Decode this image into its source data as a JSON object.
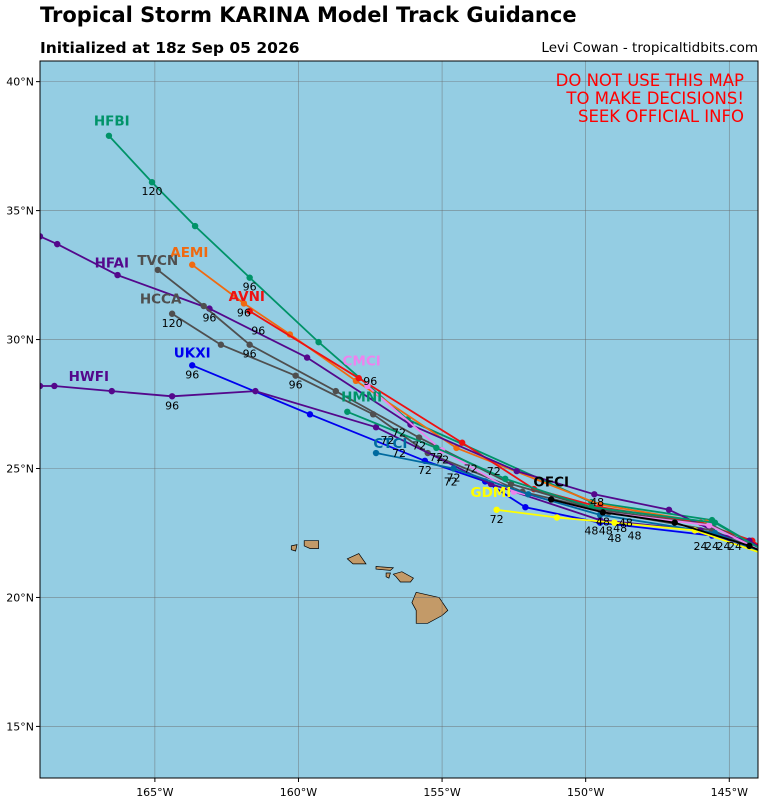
{
  "header": {
    "title": "Tropical Storm KARINA Model Track Guidance",
    "subtitle": "Initialized at 18z Sep 05 2026",
    "credit": "Levi Cowan - tropicaltidbits.com"
  },
  "warning": {
    "line1": "DO NOT USE THIS MAP",
    "line2": "TO MAKE DECISIONS!",
    "line3": "SEEK OFFICIAL INFO",
    "color": "#ff0000"
  },
  "map": {
    "lon_range": [
      -169,
      -144
    ],
    "lat_range": [
      13,
      40.8
    ],
    "ocean_color": "#94cde3",
    "land_color": "#c39a68",
    "grid_lons": [
      -165,
      -160,
      -155,
      -150,
      -145
    ],
    "grid_lats": [
      15,
      20,
      25,
      30,
      35,
      40
    ],
    "lon_tick_labels": [
      "165°W",
      "160°W",
      "155°W",
      "150°W",
      "145°W"
    ],
    "lat_tick_labels": [
      "15°N",
      "20°N",
      "25°N",
      "30°N",
      "35°N",
      "40°N"
    ]
  },
  "tracks": [
    {
      "name": "HFBI",
      "color": "#009368",
      "label": [
        -166.5,
        38.3
      ],
      "points": [
        [
          -143.3,
          21.5
        ],
        [
          -145.6,
          23.0
        ],
        [
          -149.8,
          23.7
        ],
        [
          -156.2,
          26.9
        ],
        [
          -159.3,
          29.9
        ],
        [
          -161.7,
          32.4
        ],
        [
          -163.6,
          34.4
        ],
        [
          -165.1,
          36.1
        ],
        [
          -166.6,
          37.9
        ]
      ],
      "hours": [
        {
          "h": "96",
          "at": [
            -161.7,
            32.4
          ]
        },
        {
          "h": "120",
          "at": [
            -165.1,
            36.1
          ]
        }
      ]
    },
    {
      "name": "AEMI",
      "color": "#f06a10",
      "label": [
        -163.8,
        33.2
      ],
      "points": [
        [
          -143.3,
          21.5
        ],
        [
          -145.8,
          22.9
        ],
        [
          -149.5,
          23.6
        ],
        [
          -154.5,
          25.8
        ],
        [
          -158.0,
          28.4
        ],
        [
          -160.3,
          30.2
        ],
        [
          -161.9,
          31.4
        ],
        [
          -163.7,
          32.9
        ]
      ],
      "hours": [
        {
          "h": "96",
          "at": [
            -161.9,
            31.4
          ]
        }
      ]
    },
    {
      "name": "AVNI",
      "color": "#ee1111",
      "label": [
        -161.8,
        31.5
      ],
      "points": [
        [
          -143.3,
          21.5
        ],
        [
          -144.2,
          22.2
        ],
        [
          -146.0,
          22.9
        ],
        [
          -149.5,
          23.5
        ],
        [
          -151.8,
          24.2
        ],
        [
          -154.3,
          26.0
        ],
        [
          -157.9,
          28.5
        ],
        [
          -161.7,
          31.1
        ]
      ],
      "hours": [
        {
          "h": "96",
          "at": [
            -161.4,
            30.7
          ]
        }
      ]
    },
    {
      "name": "HFAI",
      "color": "#54088c",
      "label": [
        -166.5,
        32.8
      ],
      "points": [
        [
          -143.3,
          21.5
        ],
        [
          -145.0,
          22.3
        ],
        [
          -147.1,
          23.4
        ],
        [
          -149.7,
          24.0
        ],
        [
          -152.4,
          24.9
        ],
        [
          -156.1,
          26.7
        ],
        [
          -159.7,
          29.3
        ],
        [
          -163.1,
          31.2
        ],
        [
          -166.3,
          32.5
        ],
        [
          -168.4,
          33.7
        ],
        [
          -169.0,
          34.0
        ]
      ],
      "hours": [
        {
          "h": "96",
          "at": [
            -163.1,
            31.2
          ]
        }
      ]
    },
    {
      "name": "TVCN",
      "color": "#4f4f4f",
      "label": [
        -164.9,
        32.9
      ],
      "points": [
        [
          -143.3,
          21.5
        ],
        [
          -145.6,
          22.8
        ],
        [
          -149.5,
          23.4
        ],
        [
          -152.6,
          24.4
        ],
        [
          -155.8,
          26.2
        ],
        [
          -158.7,
          28.0
        ],
        [
          -161.7,
          29.8
        ],
        [
          -163.3,
          31.3
        ],
        [
          -164.9,
          32.7
        ]
      ],
      "hours": [
        {
          "h": "96",
          "at": [
            -161.7,
            29.8
          ]
        }
      ]
    },
    {
      "name": "HCCA",
      "color": "#4f4f4f",
      "label": [
        -164.8,
        31.4
      ],
      "points": [
        [
          -143.3,
          21.5
        ],
        [
          -145.6,
          22.6
        ],
        [
          -149.2,
          23.3
        ],
        [
          -152.2,
          24.1
        ],
        [
          -155.5,
          25.6
        ],
        [
          -157.4,
          27.1
        ],
        [
          -160.1,
          28.6
        ],
        [
          -162.7,
          29.8
        ],
        [
          -164.4,
          31.0
        ]
      ],
      "hours": [
        {
          "h": "96",
          "at": [
            -160.1,
            28.6
          ]
        },
        {
          "h": "120",
          "at": [
            -164.4,
            31.0
          ]
        }
      ]
    },
    {
      "name": "UKXI",
      "color": "#0000ee",
      "label": [
        -163.7,
        29.3
      ],
      "points": [
        [
          -143.3,
          21.5
        ],
        [
          -145.6,
          22.4
        ],
        [
          -149.5,
          22.9
        ],
        [
          -152.1,
          23.5
        ],
        [
          -153.5,
          24.5
        ],
        [
          -155.6,
          25.3
        ],
        [
          -159.6,
          27.1
        ],
        [
          -163.7,
          29.0
        ]
      ],
      "hours": [
        {
          "h": "96",
          "at": [
            -163.7,
            29.0
          ]
        },
        {
          "h": "72",
          "at": [
            -155.6,
            25.3
          ]
        }
      ]
    },
    {
      "name": "HWFI",
      "color": "#54088c",
      "label": [
        -167.3,
        28.4
      ],
      "points": [
        [
          -143.3,
          21.5
        ],
        [
          -144.3,
          22.2
        ],
        [
          -146.0,
          22.6
        ],
        [
          -149.5,
          23.0
        ],
        [
          -153.3,
          24.4
        ],
        [
          -157.3,
          26.6
        ],
        [
          -161.5,
          28.0
        ],
        [
          -164.4,
          27.8
        ],
        [
          -166.5,
          28.0
        ],
        [
          -168.5,
          28.2
        ],
        [
          -169.0,
          28.2
        ]
      ],
      "hours": [
        {
          "h": "96",
          "at": [
            -164.4,
            27.8
          ]
        }
      ]
    },
    {
      "name": "CMCI",
      "color": "#ee82ee",
      "label": [
        -157.8,
        29.0
      ],
      "points": [
        [
          -143.3,
          21.5
        ],
        [
          -145.7,
          22.8
        ],
        [
          -149.4,
          23.3
        ],
        [
          -152.5,
          24.1
        ],
        [
          -155.0,
          25.7
        ],
        [
          -157.6,
          28.2
        ]
      ],
      "hours": [
        {
          "h": "72",
          "at": [
            -155.0,
            25.7
          ]
        }
      ]
    },
    {
      "name": "HMNI",
      "color": "#009368",
      "label": [
        -157.8,
        27.6
      ],
      "points": [
        [
          -143.3,
          21.5
        ],
        [
          -145.5,
          22.9
        ],
        [
          -149.8,
          23.5
        ],
        [
          -152.8,
          24.6
        ],
        [
          -155.2,
          25.8
        ],
        [
          -158.3,
          27.2
        ]
      ],
      "hours": [
        {
          "h": "72",
          "at": [
            -155.2,
            25.8
          ]
        }
      ]
    },
    {
      "name": "CTCI",
      "color": "#006a9f",
      "label": [
        -156.8,
        25.8
      ],
      "points": [
        [
          -143.3,
          21.5
        ],
        [
          -145.5,
          22.5
        ],
        [
          -149.5,
          23.2
        ],
        [
          -152.0,
          24.0
        ],
        [
          -154.6,
          25.0
        ],
        [
          -157.3,
          25.6
        ]
      ],
      "hours": [
        {
          "h": "72",
          "at": [
            -154.6,
            25.0
          ]
        }
      ]
    },
    {
      "name": "GDMI",
      "color": "#ffff00",
      "label": [
        -153.3,
        23.9
      ],
      "points": [
        [
          -143.3,
          21.5
        ],
        [
          -146.2,
          22.6
        ],
        [
          -149.0,
          22.9
        ],
        [
          -151.0,
          23.1
        ],
        [
          -153.1,
          23.4
        ]
      ],
      "hours": [
        {
          "h": "72",
          "at": [
            -153.1,
            23.4
          ]
        }
      ]
    },
    {
      "name": "OFCI",
      "color": "#000000",
      "label": [
        -151.2,
        24.3
      ],
      "points": [
        [
          -143.3,
          21.5
        ],
        [
          -144.3,
          22.0
        ],
        [
          -146.9,
          22.9
        ],
        [
          -149.4,
          23.3
        ],
        [
          -151.2,
          23.8
        ]
      ],
      "hours": [
        {
          "h": "48",
          "at": [
            -149.4,
            23.3
          ]
        }
      ]
    }
  ],
  "extra_hour_labels": [
    {
      "h": "24",
      "at": [
        -145.2,
        22.0
      ]
    },
    {
      "h": "24",
      "at": [
        -145.6,
        22.0
      ]
    },
    {
      "h": "24",
      "at": [
        -146.0,
        22.0
      ]
    },
    {
      "h": "24",
      "at": [
        -144.8,
        22.0
      ]
    },
    {
      "h": "48",
      "at": [
        -149.8,
        22.6
      ]
    },
    {
      "h": "48",
      "at": [
        -149.3,
        22.6
      ]
    },
    {
      "h": "48",
      "at": [
        -148.8,
        22.7
      ]
    },
    {
      "h": "48",
      "at": [
        -148.3,
        22.4
      ]
    },
    {
      "h": "48",
      "at": [
        -149.0,
        22.3
      ]
    },
    {
      "h": "48",
      "at": [
        -149.6,
        23.7
      ]
    },
    {
      "h": "48",
      "at": [
        -148.6,
        22.9
      ]
    },
    {
      "h": "72",
      "at": [
        -156.9,
        26.1
      ]
    },
    {
      "h": "72",
      "at": [
        -156.5,
        25.6
      ]
    },
    {
      "h": "72",
      "at": [
        -155.8,
        25.9
      ]
    },
    {
      "h": "72",
      "at": [
        -154.0,
        25.0
      ]
    },
    {
      "h": "72",
      "at": [
        -154.7,
        24.5
      ]
    },
    {
      "h": "72",
      "at": [
        -153.2,
        24.9
      ]
    },
    {
      "h": "72",
      "at": [
        -156.5,
        26.4
      ]
    },
    {
      "h": "96",
      "at": [
        -157.5,
        28.4
      ]
    }
  ],
  "islands": [
    [
      [
        -155.9,
        20.2
      ],
      [
        -155.1,
        20.0
      ],
      [
        -154.8,
        19.5
      ],
      [
        -155.0,
        19.3
      ],
      [
        -155.5,
        19.0
      ],
      [
        -155.9,
        19.0
      ],
      [
        -155.9,
        19.5
      ],
      [
        -156.05,
        19.8
      ]
    ],
    [
      [
        -156.7,
        20.9
      ],
      [
        -156.4,
        21.0
      ],
      [
        -156.0,
        20.75
      ],
      [
        -156.1,
        20.6
      ],
      [
        -156.45,
        20.6
      ],
      [
        -156.6,
        20.8
      ]
    ],
    [
      [
        -157.3,
        21.2
      ],
      [
        -156.7,
        21.15
      ],
      [
        -156.8,
        21.05
      ],
      [
        -157.3,
        21.1
      ]
    ],
    [
      [
        -158.3,
        21.5
      ],
      [
        -157.9,
        21.7
      ],
      [
        -157.65,
        21.3
      ],
      [
        -158.1,
        21.3
      ]
    ],
    [
      [
        -159.8,
        22.2
      ],
      [
        -159.3,
        22.2
      ],
      [
        -159.3,
        21.9
      ],
      [
        -159.6,
        21.9
      ],
      [
        -159.8,
        22.0
      ]
    ],
    [
      [
        -160.25,
        22.0
      ],
      [
        -160.05,
        22.05
      ],
      [
        -160.1,
        21.8
      ],
      [
        -160.25,
        21.85
      ]
    ],
    [
      [
        -156.95,
        20.95
      ],
      [
        -156.8,
        20.95
      ],
      [
        -156.85,
        20.75
      ],
      [
        -156.95,
        20.8
      ]
    ]
  ]
}
